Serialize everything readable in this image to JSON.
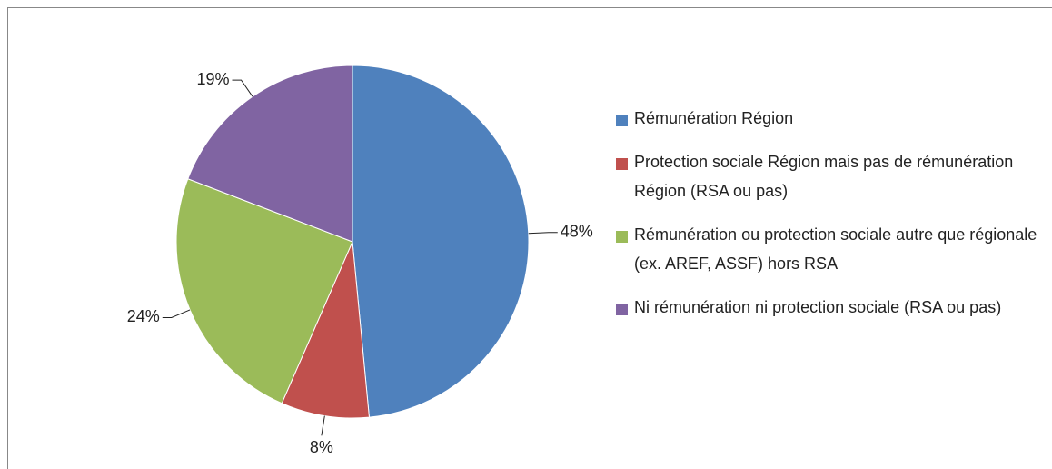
{
  "chart_data": {
    "type": "pie",
    "categories": [
      "Rémunération Région",
      "Protection sociale Région mais pas de rémunération Région (RSA ou pas)",
      "Rémunération ou protection sociale autre que régionale (ex. AREF, ASSF) hors RSA",
      "Ni rémunération ni protection sociale (RSA ou pas)"
    ],
    "values": [
      48,
      8,
      24,
      19
    ],
    "value_labels": [
      "48%",
      "8%",
      "24%",
      "19%"
    ],
    "colors": [
      "#4f81bd",
      "#c0504d",
      "#9bbb59",
      "#8064a2"
    ],
    "legend": "right"
  }
}
